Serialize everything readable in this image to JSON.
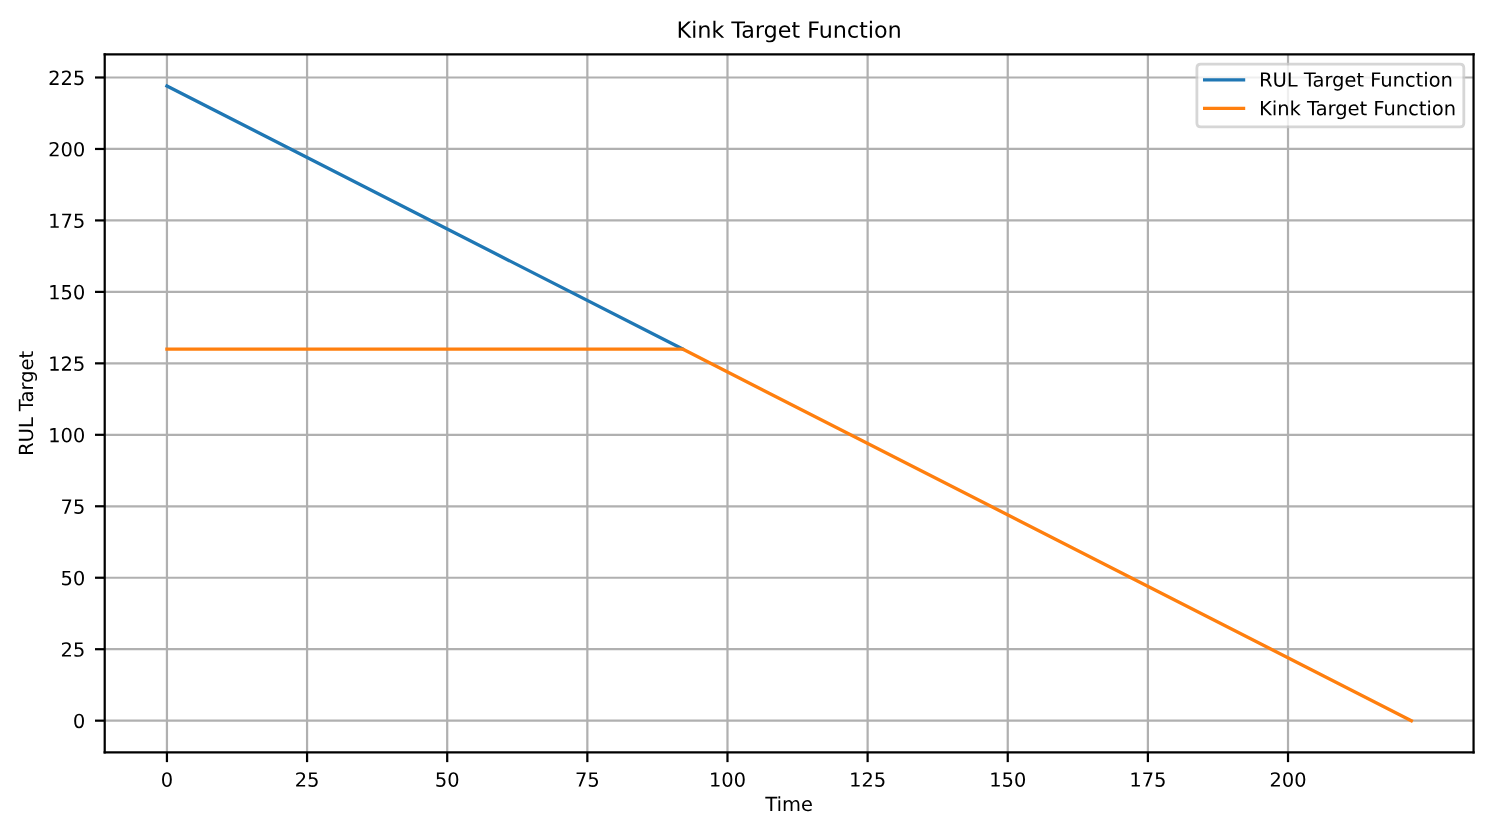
{
  "chart_data": {
    "type": "line",
    "title": "Kink Target Function",
    "xlabel": "Time",
    "ylabel": "RUL Target",
    "series": [
      {
        "name": "RUL Target Function",
        "color": "#1f77b4",
        "x": [
          0,
          92
        ],
        "values": [
          222,
          130
        ]
      },
      {
        "name": "Kink Target Function",
        "color": "#ff7f0e",
        "x": [
          0,
          92,
          222
        ],
        "values": [
          130,
          130,
          0
        ]
      }
    ],
    "xlim": [
      -11.1,
      233.1
    ],
    "ylim": [
      -11.1,
      233.1
    ],
    "xticks": [
      0,
      25,
      50,
      75,
      100,
      125,
      150,
      175,
      200
    ],
    "yticks": [
      0,
      25,
      50,
      75,
      100,
      125,
      150,
      175,
      200,
      225
    ],
    "grid": true,
    "legend": "top right",
    "line_style": "solid"
  }
}
